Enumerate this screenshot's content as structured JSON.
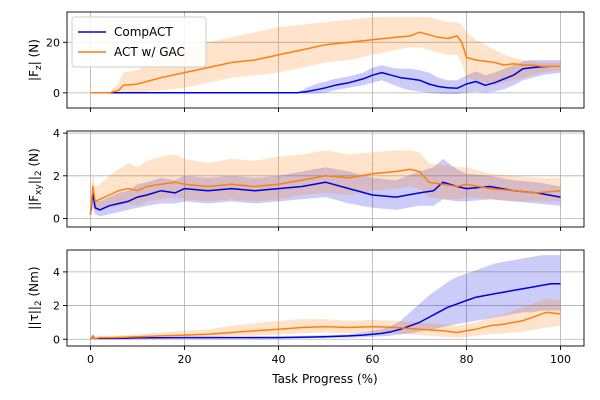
{
  "figure": {
    "xlabel": "Task Progress (%)",
    "xticks": [
      "0",
      "20",
      "40",
      "60",
      "80",
      "100"
    ]
  },
  "legend": {
    "items": [
      {
        "label": "CompACT",
        "color": "#0000dd"
      },
      {
        "label": "ACT w/ GAC",
        "color": "#ff7f0e"
      }
    ]
  },
  "chart_data": [
    {
      "type": "line",
      "title": "",
      "ylabel": "|F_z| (N)",
      "ylabel_parts": [
        "|F",
        "z",
        "| (N)"
      ],
      "xlabel": "Task Progress (%)",
      "xlim": [
        -5,
        105
      ],
      "ylim": [
        -6,
        32
      ],
      "yticks": [
        0,
        20
      ],
      "grid": true,
      "series": [
        {
          "name": "CompACT",
          "color": "#0000dd",
          "x": [
            0,
            5,
            10,
            20,
            30,
            40,
            44,
            46,
            48,
            50,
            52,
            55,
            58,
            60,
            62,
            64,
            66,
            68,
            70,
            72,
            74,
            76,
            78,
            80,
            82,
            84,
            86,
            88,
            90,
            92,
            94,
            96,
            98,
            100
          ],
          "y": [
            0,
            0,
            0,
            0,
            0,
            0,
            0,
            0.5,
            1.2,
            2,
            3,
            4,
            5.5,
            7,
            8,
            7,
            6,
            5.5,
            5,
            3.5,
            2.5,
            2,
            1.8,
            3.5,
            4.5,
            3,
            4,
            5.5,
            7,
            9.5,
            10,
            10.3,
            10.5,
            10.5
          ],
          "lower": [
            0,
            0,
            0,
            0,
            0,
            0,
            0,
            -0.3,
            -0.3,
            0,
            1,
            2,
            3,
            4,
            5,
            3.5,
            2,
            1,
            0.5,
            0,
            -0.3,
            -0.5,
            -0.5,
            0,
            0.5,
            0,
            0.5,
            1.5,
            3,
            5,
            6,
            7,
            7.5,
            8
          ],
          "upper": [
            0,
            0,
            0,
            0,
            0,
            0,
            0,
            2,
            3.5,
            4.5,
            5.5,
            6.5,
            8,
            10,
            11,
            10,
            9.5,
            9.5,
            9,
            8,
            6,
            5,
            5,
            7,
            8.5,
            7,
            8,
            9.5,
            11,
            12.5,
            13,
            13,
            13,
            13
          ]
        },
        {
          "name": "ACT w/ GAC",
          "color": "#ff7f0e",
          "x": [
            0,
            4,
            6,
            7,
            10,
            15,
            20,
            25,
            30,
            35,
            40,
            45,
            50,
            55,
            60,
            65,
            68,
            70,
            72,
            74,
            76,
            78,
            79,
            80,
            82,
            84,
            86,
            88,
            90,
            92,
            94,
            96,
            98,
            100
          ],
          "y": [
            0,
            0,
            1,
            3,
            3.5,
            6,
            8,
            10,
            12,
            13,
            15,
            17,
            19,
            20,
            21,
            22,
            22.5,
            24,
            23,
            22,
            21.5,
            22.5,
            20,
            14,
            13,
            12.5,
            12,
            11,
            11.5,
            11,
            11,
            10.5,
            10.5,
            10.5
          ],
          "lower": [
            0,
            0,
            0,
            0,
            0,
            1,
            2,
            4,
            6,
            7,
            8,
            10,
            12,
            13,
            15,
            17,
            18,
            18,
            17,
            16,
            15,
            15,
            12,
            6,
            5,
            4,
            3,
            4,
            5,
            6,
            7,
            8,
            8.5,
            9
          ],
          "upper": [
            0,
            0,
            4,
            8,
            9,
            14,
            17,
            20,
            22,
            24,
            26,
            27,
            28,
            29,
            30,
            30,
            30,
            30,
            30,
            29,
            28,
            28,
            27,
            24,
            21,
            19,
            17,
            15,
            14,
            13,
            12.5,
            12,
            12,
            12
          ]
        }
      ]
    },
    {
      "type": "line",
      "title": "",
      "ylabel": "||F_xy||_2 (N)",
      "ylabel_parts": [
        "||F",
        "xy",
        "||",
        "2",
        " (N)"
      ],
      "xlabel": "Task Progress (%)",
      "xlim": [
        -5,
        105
      ],
      "ylim": [
        -0.4,
        4.1
      ],
      "yticks": [
        0,
        2,
        4
      ],
      "grid": true,
      "series": [
        {
          "name": "CompACT",
          "color": "#0000dd",
          "x": [
            0,
            0.5,
            1,
            2,
            4,
            6,
            8,
            10,
            12,
            15,
            18,
            20,
            25,
            30,
            35,
            40,
            45,
            50,
            55,
            60,
            65,
            70,
            73,
            75,
            78,
            80,
            85,
            90,
            95,
            100
          ],
          "y": [
            0.2,
            1.2,
            0.5,
            0.4,
            0.6,
            0.7,
            0.8,
            1.0,
            1.1,
            1.3,
            1.2,
            1.4,
            1.3,
            1.4,
            1.3,
            1.4,
            1.5,
            1.7,
            1.4,
            1.1,
            1.0,
            1.2,
            1.3,
            1.7,
            1.5,
            1.4,
            1.5,
            1.3,
            1.2,
            1.0
          ],
          "lower": [
            0.1,
            0.5,
            0.2,
            0.1,
            0.2,
            0.3,
            0.4,
            0.5,
            0.6,
            0.7,
            0.7,
            0.8,
            0.7,
            0.8,
            0.7,
            0.8,
            0.9,
            1.0,
            0.7,
            0.5,
            0.4,
            0.6,
            0.6,
            0.9,
            0.8,
            0.8,
            0.9,
            0.8,
            0.7,
            0.6
          ],
          "upper": [
            0.3,
            1.6,
            0.9,
            0.8,
            1.0,
            1.2,
            1.3,
            1.6,
            1.7,
            1.9,
            1.8,
            2.0,
            1.9,
            2.0,
            1.9,
            2.0,
            2.2,
            2.4,
            2.2,
            1.9,
            1.8,
            2.2,
            2.4,
            2.8,
            2.3,
            2.1,
            2.0,
            1.8,
            1.7,
            1.5
          ]
        },
        {
          "name": "ACT w/ GAC",
          "color": "#ff7f0e",
          "x": [
            0,
            0.5,
            1,
            2,
            4,
            6,
            8,
            10,
            12,
            15,
            18,
            20,
            25,
            30,
            35,
            40,
            45,
            50,
            55,
            60,
            65,
            68,
            70,
            72,
            75,
            78,
            80,
            85,
            90,
            95,
            100
          ],
          "y": [
            0.2,
            1.5,
            0.8,
            0.9,
            1.1,
            1.3,
            1.4,
            1.3,
            1.5,
            1.6,
            1.7,
            1.6,
            1.5,
            1.6,
            1.5,
            1.6,
            1.8,
            2.0,
            1.9,
            2.1,
            2.2,
            2.3,
            2.2,
            1.7,
            1.6,
            1.5,
            1.6,
            1.4,
            1.3,
            1.2,
            1.3
          ],
          "lower": [
            0.1,
            0.8,
            0.3,
            0.4,
            0.5,
            0.6,
            0.7,
            0.6,
            0.8,
            0.9,
            1.0,
            0.9,
            0.8,
            0.9,
            0.8,
            0.9,
            1.1,
            1.2,
            1.1,
            1.3,
            1.4,
            1.5,
            1.4,
            1.0,
            0.9,
            0.9,
            1.0,
            0.9,
            0.8,
            0.8,
            0.8
          ],
          "upper": [
            0.3,
            2.2,
            1.5,
            1.6,
            2.0,
            2.3,
            2.6,
            2.4,
            2.7,
            2.9,
            3.0,
            2.8,
            2.6,
            2.8,
            2.7,
            2.9,
            3.0,
            3.2,
            3.0,
            3.1,
            3.2,
            3.2,
            3.1,
            2.6,
            2.5,
            2.4,
            2.4,
            2.1,
            2.0,
            1.9,
            1.9
          ]
        }
      ]
    },
    {
      "type": "line",
      "title": "",
      "ylabel": "||τ||_2 (Nm)",
      "ylabel_parts": [
        "||τ||",
        "2",
        " (Nm)"
      ],
      "xlabel": "Task Progress (%)",
      "xlim": [
        -5,
        105
      ],
      "ylim": [
        -0.4,
        5.3
      ],
      "yticks": [
        0,
        2,
        4
      ],
      "grid": true,
      "series": [
        {
          "name": "CompACT",
          "color": "#0000dd",
          "x": [
            0,
            0.5,
            1,
            2,
            5,
            10,
            20,
            30,
            40,
            45,
            50,
            55,
            58,
            60,
            62,
            64,
            66,
            68,
            70,
            72,
            74,
            76,
            78,
            80,
            82,
            84,
            86,
            88,
            90,
            92,
            94,
            96,
            98,
            100
          ],
          "y": [
            0,
            0.15,
            0.05,
            0.05,
            0.05,
            0.08,
            0.1,
            0.1,
            0.1,
            0.12,
            0.15,
            0.2,
            0.25,
            0.3,
            0.35,
            0.45,
            0.6,
            0.8,
            1.0,
            1.3,
            1.6,
            1.9,
            2.1,
            2.3,
            2.5,
            2.6,
            2.7,
            2.8,
            2.9,
            3.0,
            3.1,
            3.2,
            3.3,
            3.3
          ],
          "lower": [
            0,
            0.05,
            0.02,
            0.02,
            0.02,
            0.04,
            0.05,
            0.05,
            0.05,
            0.06,
            0.08,
            0.1,
            0.12,
            0.15,
            0.18,
            0.22,
            0.28,
            0.35,
            0.45,
            0.55,
            0.65,
            0.8,
            0.9,
            1.0,
            1.1,
            1.2,
            1.3,
            1.4,
            1.5,
            1.6,
            1.6,
            1.7,
            1.7,
            1.7
          ],
          "upper": [
            0,
            0.3,
            0.1,
            0.1,
            0.1,
            0.12,
            0.15,
            0.15,
            0.18,
            0.2,
            0.25,
            0.3,
            0.4,
            0.5,
            0.6,
            0.8,
            1.1,
            1.6,
            2.1,
            2.6,
            3.0,
            3.4,
            3.7,
            3.9,
            4.1,
            4.3,
            4.5,
            4.6,
            4.7,
            4.8,
            4.9,
            5.0,
            5.0,
            5.0
          ]
        },
        {
          "name": "ACT w/ GAC",
          "color": "#ff7f0e",
          "x": [
            0,
            0.5,
            1,
            2,
            5,
            10,
            15,
            20,
            25,
            30,
            35,
            40,
            45,
            50,
            55,
            60,
            65,
            70,
            75,
            78,
            80,
            82,
            85,
            88,
            90,
            92,
            95,
            97,
            100
          ],
          "y": [
            0,
            0.2,
            0.05,
            0.1,
            0.1,
            0.15,
            0.2,
            0.25,
            0.3,
            0.4,
            0.5,
            0.6,
            0.7,
            0.75,
            0.7,
            0.75,
            0.7,
            0.6,
            0.5,
            0.4,
            0.5,
            0.6,
            0.8,
            0.9,
            1.0,
            1.1,
            1.4,
            1.6,
            1.5
          ],
          "lower": [
            0,
            0.05,
            0.02,
            0.03,
            0.03,
            0.05,
            0.08,
            0.1,
            0.12,
            0.18,
            0.22,
            0.28,
            0.35,
            0.4,
            0.35,
            0.4,
            0.35,
            0.25,
            0.15,
            0.1,
            0.15,
            0.2,
            0.3,
            0.35,
            0.4,
            0.45,
            0.6,
            0.7,
            0.8
          ],
          "upper": [
            0,
            0.35,
            0.1,
            0.2,
            0.2,
            0.3,
            0.4,
            0.5,
            0.6,
            0.8,
            0.95,
            1.1,
            1.2,
            1.2,
            1.1,
            1.15,
            1.1,
            1.0,
            0.9,
            0.8,
            0.9,
            1.0,
            1.3,
            1.5,
            1.7,
            1.9,
            2.2,
            2.4,
            2.3
          ]
        }
      ]
    }
  ]
}
